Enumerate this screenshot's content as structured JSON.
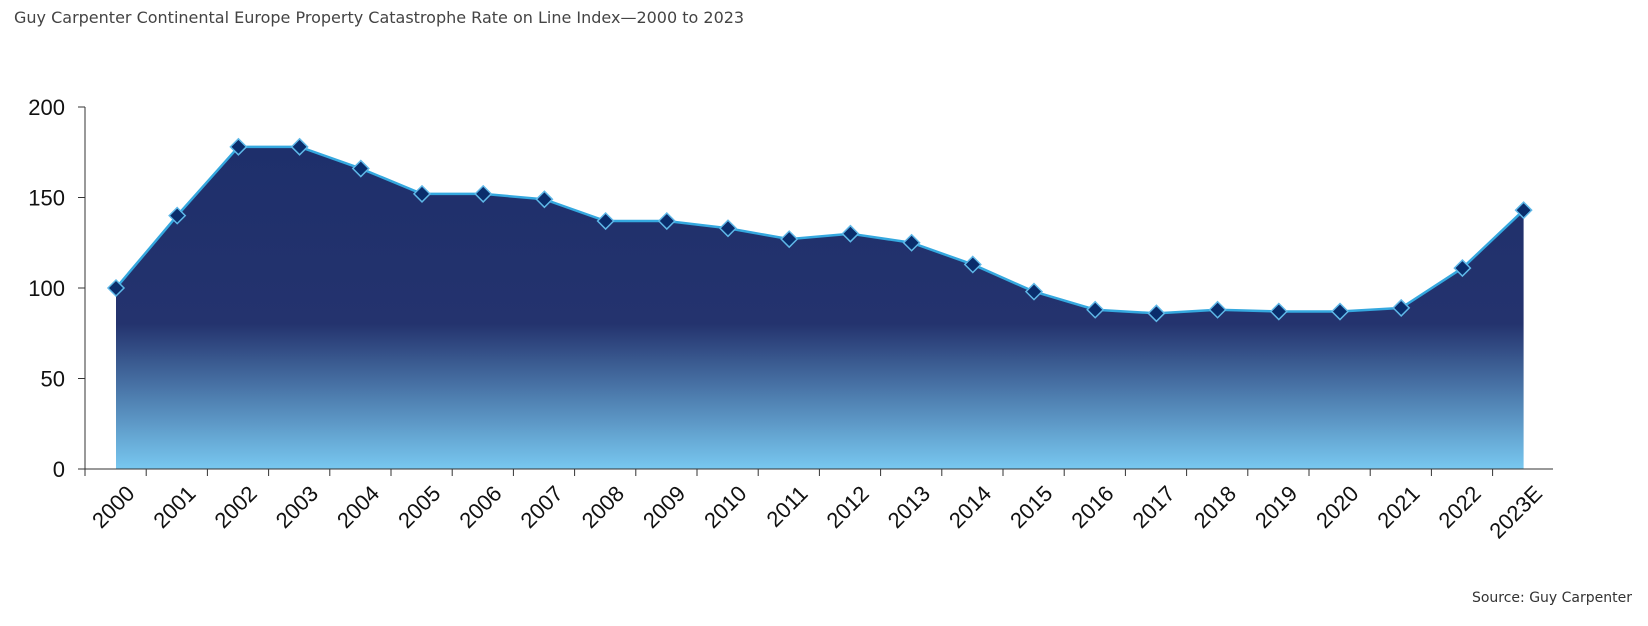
{
  "title": "Guy Carpenter Continental Europe Property Catastrophe Rate on Line Index—2000 to 2023",
  "source": "Source: Guy Carpenter",
  "colors": {
    "line": "#35a8df",
    "marker_fill": "#0a2d6c",
    "marker_stroke": "#5fb8e8",
    "area_top": "#1e2f6b",
    "area_bottom": "#78c8f0",
    "axis": "#333333"
  },
  "chart_data": {
    "type": "area",
    "categories": [
      "2000",
      "2001",
      "2002",
      "2003",
      "2004",
      "2005",
      "2006",
      "2007",
      "2008",
      "2009",
      "2010",
      "2011",
      "2012",
      "2013",
      "2014",
      "2015",
      "2016",
      "2017",
      "2018",
      "2019",
      "2020",
      "2021",
      "2022",
      "2023E"
    ],
    "values": [
      100,
      140,
      178,
      178,
      166,
      152,
      152,
      149,
      137,
      137,
      133,
      127,
      130,
      125,
      113,
      98,
      88,
      86,
      88,
      87,
      87,
      89,
      111,
      143
    ],
    "ylim": [
      0,
      200
    ],
    "yticks": [
      "0",
      "50",
      "100",
      "150",
      "200"
    ],
    "markers": "diamond",
    "grid": false,
    "legend": "none"
  }
}
